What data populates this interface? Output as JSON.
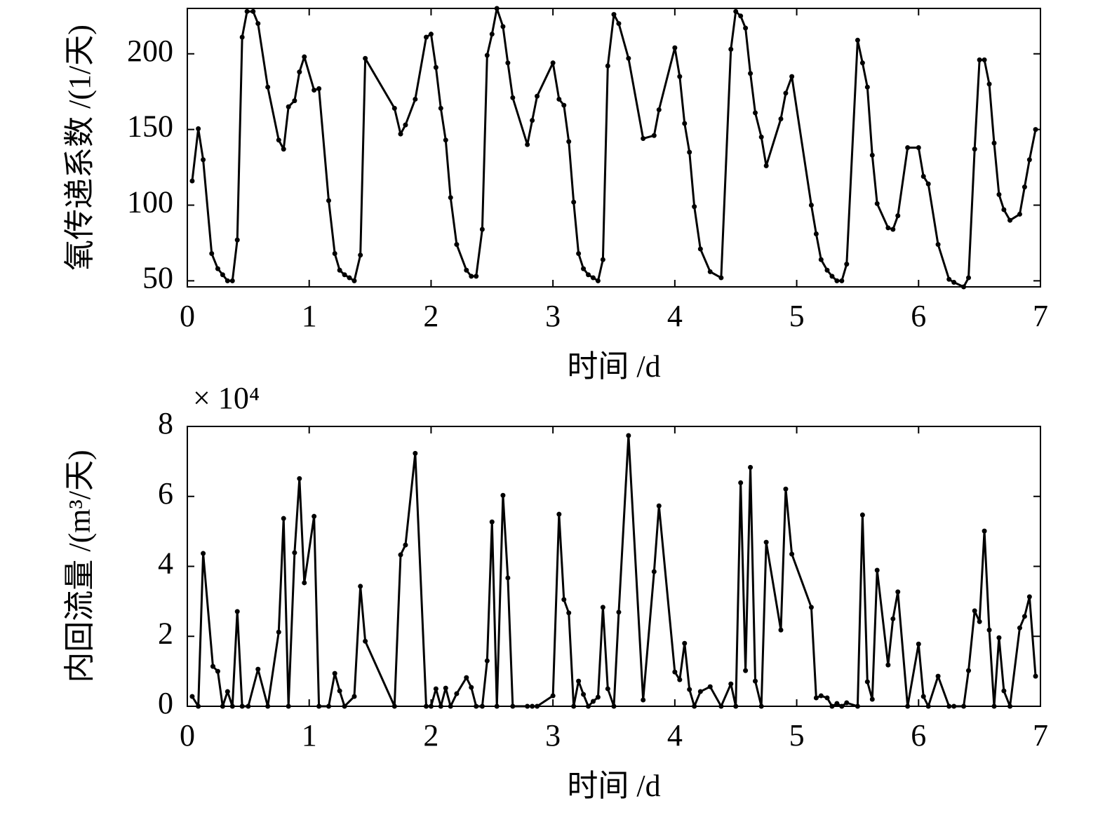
{
  "chart_data": [
    {
      "type": "line",
      "color": "#000000",
      "xlabel": "时间 /d",
      "ylabel": "氧传递系数 /(1/天)",
      "xlim": [
        0,
        7
      ],
      "xticks": [
        0,
        1,
        2,
        3,
        4,
        5,
        6,
        7
      ],
      "ylim": [
        46,
        230
      ],
      "yticks": [
        50,
        100,
        150,
        200
      ],
      "x": [
        0.04,
        0.09,
        0.13,
        0.2,
        0.25,
        0.29,
        0.33,
        0.37,
        0.41,
        0.45,
        0.49,
        0.54,
        0.58,
        0.66,
        0.75,
        0.79,
        0.83,
        0.88,
        0.92,
        0.96,
        1.04,
        1.08,
        1.16,
        1.21,
        1.25,
        1.29,
        1.33,
        1.37,
        1.42,
        1.46,
        1.7,
        1.75,
        1.79,
        1.87,
        1.96,
        2.0,
        2.04,
        2.08,
        2.12,
        2.16,
        2.21,
        2.29,
        2.33,
        2.37,
        2.42,
        2.46,
        2.5,
        2.54,
        2.59,
        2.63,
        2.67,
        2.79,
        2.83,
        2.87,
        3.0,
        3.05,
        3.09,
        3.13,
        3.17,
        3.21,
        3.25,
        3.29,
        3.33,
        3.37,
        3.41,
        3.45,
        3.5,
        3.54,
        3.62,
        3.74,
        3.83,
        3.87,
        4.0,
        4.04,
        4.08,
        4.12,
        4.16,
        4.21,
        4.29,
        4.38,
        4.46,
        4.5,
        4.54,
        4.58,
        4.62,
        4.66,
        4.71,
        4.75,
        4.87,
        4.91,
        4.96,
        5.12,
        5.16,
        5.2,
        5.25,
        5.29,
        5.33,
        5.37,
        5.41,
        5.5,
        5.54,
        5.58,
        5.62,
        5.66,
        5.75,
        5.79,
        5.83,
        5.91,
        6.0,
        6.04,
        6.08,
        6.16,
        6.25,
        6.29,
        6.37,
        6.41,
        6.46,
        6.5,
        6.54,
        6.58,
        6.62,
        6.66,
        6.7,
        6.75,
        6.83,
        6.87,
        6.91,
        6.96
      ],
      "values": [
        116,
        150.5,
        130,
        68,
        58,
        54,
        50,
        50,
        77,
        211,
        228,
        228,
        220,
        178,
        143,
        137,
        165,
        169,
        188,
        198,
        176,
        177,
        103,
        68,
        57,
        54,
        52,
        50,
        67,
        197,
        164,
        147,
        153,
        170,
        211,
        213,
        191,
        164,
        143,
        105,
        74,
        57,
        53,
        53,
        84,
        199,
        213,
        230,
        218,
        194,
        171,
        140,
        156,
        172,
        194,
        170,
        166,
        142,
        102,
        68,
        58,
        54,
        52,
        50,
        64,
        192,
        226,
        220,
        197,
        144,
        146,
        163,
        204,
        185,
        154,
        135,
        99,
        71,
        56,
        52,
        203,
        228,
        225,
        217,
        187,
        161,
        145,
        126,
        157,
        174,
        185,
        100,
        81,
        64,
        57,
        53,
        50,
        50,
        61,
        209,
        194,
        178,
        133,
        101,
        85,
        84,
        93,
        138,
        138,
        119,
        114,
        74,
        51,
        49,
        46,
        52,
        137,
        196,
        196,
        180,
        141,
        107,
        97,
        90,
        94,
        112,
        130,
        150
      ]
    },
    {
      "type": "line",
      "color": "#000000",
      "xlabel": "时间 /d",
      "ylabel": "内回流量 /(m³/天)",
      "y_multiplier": "× 10⁴",
      "xlim": [
        0,
        7
      ],
      "xticks": [
        0,
        1,
        2,
        3,
        4,
        5,
        6,
        7
      ],
      "ylim": [
        0,
        8
      ],
      "yticks": [
        0,
        2,
        4,
        6,
        8
      ],
      "x": [
        0.04,
        0.09,
        0.13,
        0.21,
        0.25,
        0.29,
        0.33,
        0.37,
        0.41,
        0.45,
        0.5,
        0.58,
        0.66,
        0.75,
        0.79,
        0.83,
        0.88,
        0.92,
        0.96,
        1.04,
        1.08,
        1.16,
        1.21,
        1.25,
        1.29,
        1.37,
        1.42,
        1.46,
        1.7,
        1.75,
        1.79,
        1.87,
        1.96,
        2.0,
        2.04,
        2.08,
        2.12,
        2.16,
        2.21,
        2.29,
        2.33,
        2.37,
        2.42,
        2.46,
        2.5,
        2.54,
        2.59,
        2.63,
        2.67,
        2.79,
        2.83,
        2.87,
        3.0,
        3.05,
        3.09,
        3.13,
        3.17,
        3.21,
        3.25,
        3.29,
        3.33,
        3.37,
        3.41,
        3.45,
        3.5,
        3.54,
        3.62,
        3.74,
        3.83,
        3.87,
        4.0,
        4.04,
        4.08,
        4.12,
        4.16,
        4.21,
        4.29,
        4.38,
        4.46,
        4.5,
        4.54,
        4.58,
        4.62,
        4.66,
        4.71,
        4.75,
        4.87,
        4.91,
        4.96,
        5.12,
        5.16,
        5.2,
        5.25,
        5.29,
        5.33,
        5.37,
        5.41,
        5.5,
        5.54,
        5.58,
        5.62,
        5.66,
        5.75,
        5.79,
        5.83,
        5.91,
        6.0,
        6.04,
        6.08,
        6.16,
        6.25,
        6.29,
        6.37,
        6.41,
        6.46,
        6.5,
        6.54,
        6.58,
        6.62,
        6.66,
        6.7,
        6.75,
        6.83,
        6.87,
        6.91,
        6.96
      ],
      "values": [
        0.28,
        0,
        4.37,
        1.14,
        1.0,
        0,
        0.42,
        0,
        2.71,
        0,
        0,
        1.06,
        0,
        2.12,
        5.37,
        0,
        4.39,
        6.51,
        3.53,
        5.43,
        0,
        0,
        0.94,
        0.44,
        0,
        0.28,
        3.43,
        1.86,
        0,
        4.33,
        4.61,
        7.23,
        0,
        0,
        0.5,
        0,
        0.52,
        0,
        0.36,
        0.82,
        0.54,
        0,
        0,
        1.3,
        5.27,
        0,
        6.03,
        3.67,
        0,
        0,
        0,
        0,
        0.3,
        5.49,
        3.05,
        2.67,
        0,
        0.72,
        0.34,
        0,
        0.14,
        0.26,
        2.83,
        0.5,
        0,
        2.69,
        7.74,
        0.18,
        3.85,
        5.73,
        0.98,
        0.76,
        1.8,
        0.48,
        0,
        0.42,
        0.56,
        0,
        0.64,
        0,
        6.39,
        1.02,
        6.83,
        0.72,
        0,
        4.69,
        2.18,
        6.21,
        4.35,
        2.83,
        0.24,
        0.3,
        0.24,
        0,
        0.08,
        0,
        0.1,
        0,
        5.47,
        0.7,
        0.2,
        3.89,
        1.18,
        2.5,
        3.27,
        0,
        1.78,
        0.28,
        0,
        0.86,
        0,
        0,
        0,
        1.02,
        2.73,
        2.42,
        5.01,
        2.18,
        0,
        1.96,
        0.44,
        0,
        2.24,
        2.57,
        3.13,
        0.86
      ]
    }
  ]
}
